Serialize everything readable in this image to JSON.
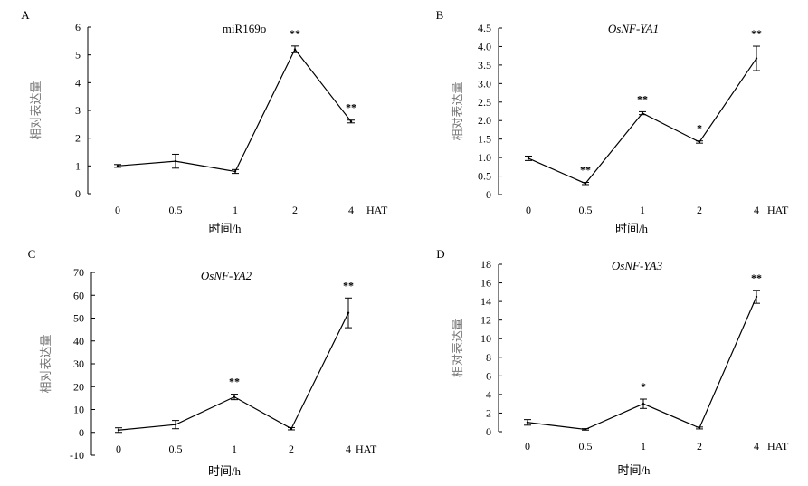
{
  "chart_data": [
    {
      "type": "line",
      "panel": "A",
      "title": "miR169o",
      "title_italic": false,
      "categories": [
        "0",
        "0.5",
        "1",
        "2",
        "4"
      ],
      "x_unit_label": "HAT",
      "xlabel": "时间/h",
      "ylabel": "相对表达量",
      "ylim": [
        0,
        6
      ],
      "yticks": [
        0,
        1,
        2,
        3,
        4,
        5,
        6
      ],
      "ytick_labels": [
        "0",
        "1",
        "2",
        "3",
        "4",
        "5",
        "6"
      ],
      "values": [
        1.0,
        1.17,
        0.8,
        5.2,
        2.6
      ],
      "errors": [
        0.05,
        0.25,
        0.07,
        0.12,
        0.05
      ],
      "significance": [
        "",
        "",
        "",
        "**",
        "**"
      ]
    },
    {
      "type": "line",
      "panel": "B",
      "title": "OsNF-YA1",
      "title_italic": true,
      "categories": [
        "0",
        "0.5",
        "1",
        "2",
        "4"
      ],
      "x_unit_label": "HAT",
      "xlabel": "时间/h",
      "ylabel": "相对表达量",
      "ylim": [
        0,
        4.5
      ],
      "yticks": [
        0,
        0.5,
        1,
        1.5,
        2,
        2.5,
        3,
        3.5,
        4,
        4.5
      ],
      "ytick_labels": [
        "0",
        "0.5",
        "1.0",
        "1.5",
        "2.0",
        "2.5",
        "3.0",
        "3.5",
        "4.0",
        "4.5"
      ],
      "values": [
        0.98,
        0.3,
        2.2,
        1.42,
        3.68
      ],
      "errors": [
        0.06,
        0.03,
        0.04,
        0.03,
        0.33
      ],
      "significance": [
        "",
        "**",
        "**",
        "*",
        "**"
      ]
    },
    {
      "type": "line",
      "panel": "C",
      "title": "OsNF-YA2",
      "title_italic": true,
      "categories": [
        "0",
        "0.5",
        "1",
        "2",
        "4"
      ],
      "x_unit_label": "HAT",
      "xlabel": "时间/h",
      "ylabel": "相对表达量",
      "ylim": [
        -10,
        70
      ],
      "yticks": [
        -10,
        0,
        10,
        20,
        30,
        40,
        50,
        60,
        70
      ],
      "ytick_labels": [
        "-10",
        "0",
        "10",
        "20",
        "30",
        "40",
        "50",
        "60",
        "70"
      ],
      "values": [
        1.0,
        3.4,
        15.5,
        1.6,
        52.3
      ],
      "errors": [
        1.0,
        1.8,
        1.2,
        0.5,
        6.5
      ],
      "significance": [
        "",
        "",
        "**",
        "",
        "**"
      ]
    },
    {
      "type": "line",
      "panel": "D",
      "title": "OsNF-YA3",
      "title_italic": true,
      "categories": [
        "0",
        "0.5",
        "1",
        "2",
        "4"
      ],
      "x_unit_label": "HAT",
      "xlabel": "时间/h",
      "ylabel": "相对表达量",
      "ylim": [
        0,
        18
      ],
      "yticks": [
        0,
        2,
        4,
        6,
        8,
        10,
        12,
        14,
        16,
        18
      ],
      "ytick_labels": [
        "0",
        "2",
        "4",
        "6",
        "8",
        "10",
        "12",
        "14",
        "16",
        "18"
      ],
      "values": [
        1.0,
        0.25,
        3.0,
        0.4,
        14.5
      ],
      "errors": [
        0.3,
        0.08,
        0.5,
        0.1,
        0.7
      ],
      "significance": [
        "",
        "",
        "*",
        "",
        "**"
      ]
    }
  ]
}
